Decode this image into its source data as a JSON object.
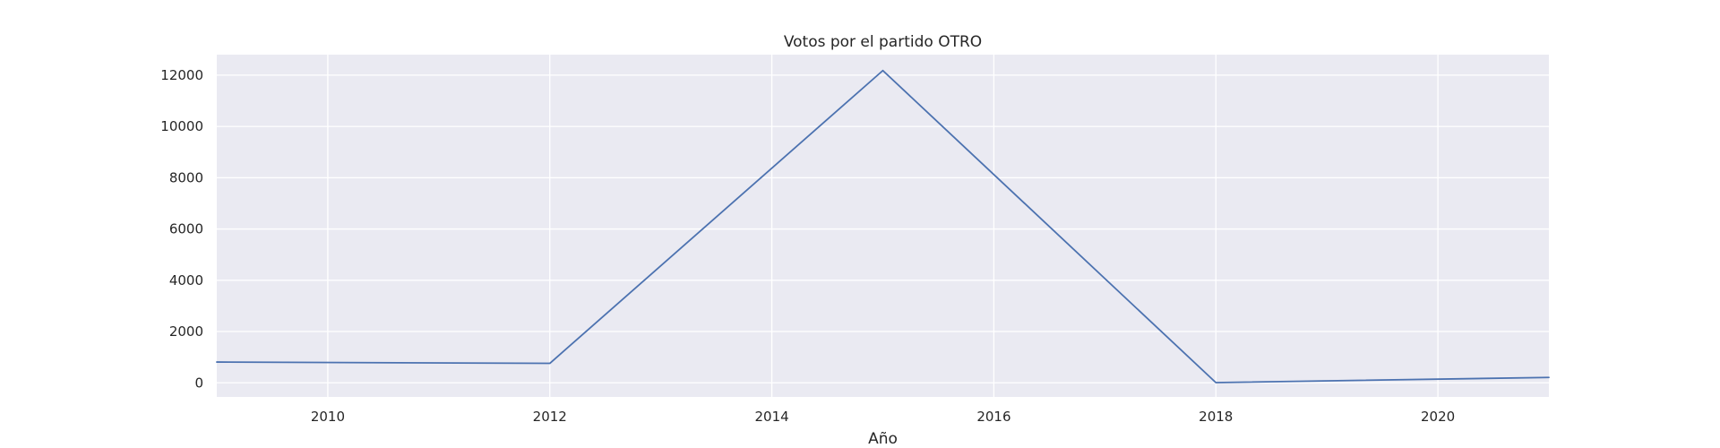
{
  "chart_data": {
    "type": "line",
    "title": "Votos por el partido OTRO",
    "xlabel": "Año",
    "ylabel": "",
    "xlim": [
      2009,
      2021
    ],
    "ylim": [
      -550,
      12800
    ],
    "x_ticks": [
      2010,
      2012,
      2014,
      2016,
      2018,
      2020
    ],
    "y_ticks": [
      0,
      2000,
      4000,
      6000,
      8000,
      10000,
      12000
    ],
    "grid": true,
    "background_color": "#eaeaf2",
    "grid_color": "#ffffff",
    "series": [
      {
        "color": "#4c72b0",
        "x": [
          2009,
          2012,
          2015,
          2018,
          2021
        ],
        "values": [
          810,
          760,
          12180,
          10,
          210
        ]
      }
    ]
  }
}
